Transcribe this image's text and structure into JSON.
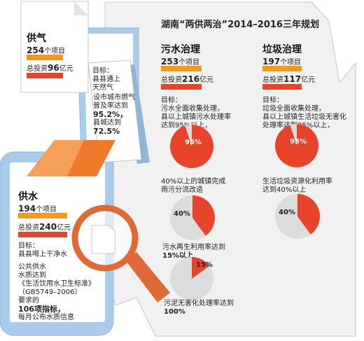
{
  "title": "湖南“两供两治”2014–2016三年规划",
  "colors": {
    "orange": "#f29a1f",
    "red": "#e8432b",
    "phone": "#a9ccea",
    "panel": "#f1f1f1",
    "pie_bg": "#dcdcdc",
    "diamond": "#ef7a2b",
    "magnifier": "#e06a36"
  },
  "gas": {
    "heading": "供气",
    "projects_num": "254",
    "projects_unit": "个项目",
    "invest_prefix": "总投资",
    "invest_num": "96",
    "invest_unit": "亿元",
    "goal_lines": [
      "目标：",
      "县县通上",
      "天然气"
    ],
    "target_lines": [
      "设市城市燃气",
      "普及率达到",
      "95.2%，",
      "县城达到",
      "72.5%"
    ]
  },
  "water_supply": {
    "heading": "供水",
    "projects_num": "194",
    "projects_unit": "个项目",
    "invest_prefix": "总投资",
    "invest_num": "240",
    "invest_unit": "亿元",
    "goal_lines": [
      "目标：",
      "县县喝上干净水"
    ],
    "detail_lines": [
      "公共供水",
      "水质达到",
      "《生活饮用水卫生标准》",
      "（GB5749–2006）",
      "要求的",
      "106项指标，",
      "每月公布水质信息"
    ]
  },
  "sewage": {
    "heading": "污水治理",
    "projects_num": "253",
    "projects_unit": "个项目",
    "invest_prefix": "总投资",
    "invest_num": "216",
    "invest_unit": "亿元",
    "goal_lines": [
      "目标：",
      "污水全面收集处理，",
      "县以上城镇污水处理率",
      "达到95%以上，"
    ],
    "pie1_label": "95%",
    "pie2_text_lines": [
      "40%以上的城镇完成",
      "雨污分流改造"
    ],
    "pie2_label": "40%",
    "pie3_text_lines": [
      "污水再生利用率达到",
      "15%以上"
    ],
    "pie3_label": "15%",
    "pie4_text_lines": [
      "污泥无害化处理率达到",
      "100%"
    ]
  },
  "garbage": {
    "heading": "垃圾治理",
    "projects_num": "197",
    "projects_unit": "个项目",
    "invest_prefix": "总投资",
    "invest_num": "117",
    "invest_unit": "亿元",
    "goal_lines": [
      "目标：",
      "垃圾全面收集处理，",
      "县以上城镇生活垃圾无害化",
      "处理率达到95%以上，"
    ],
    "pie1_label": "95%",
    "pie2_text_lines": [
      "生活垃圾资源化利用率",
      "达到40%以上"
    ],
    "pie2_label": "40%"
  },
  "chart_data": [
    {
      "type": "pie",
      "values": [
        95,
        5
      ]
    },
    {
      "type": "pie",
      "values": [
        40,
        60
      ]
    },
    {
      "type": "pie",
      "values": [
        15,
        85
      ]
    },
    {
      "type": "pie",
      "values": [
        95,
        5
      ]
    },
    {
      "type": "pie",
      "values": [
        40,
        60
      ]
    }
  ]
}
